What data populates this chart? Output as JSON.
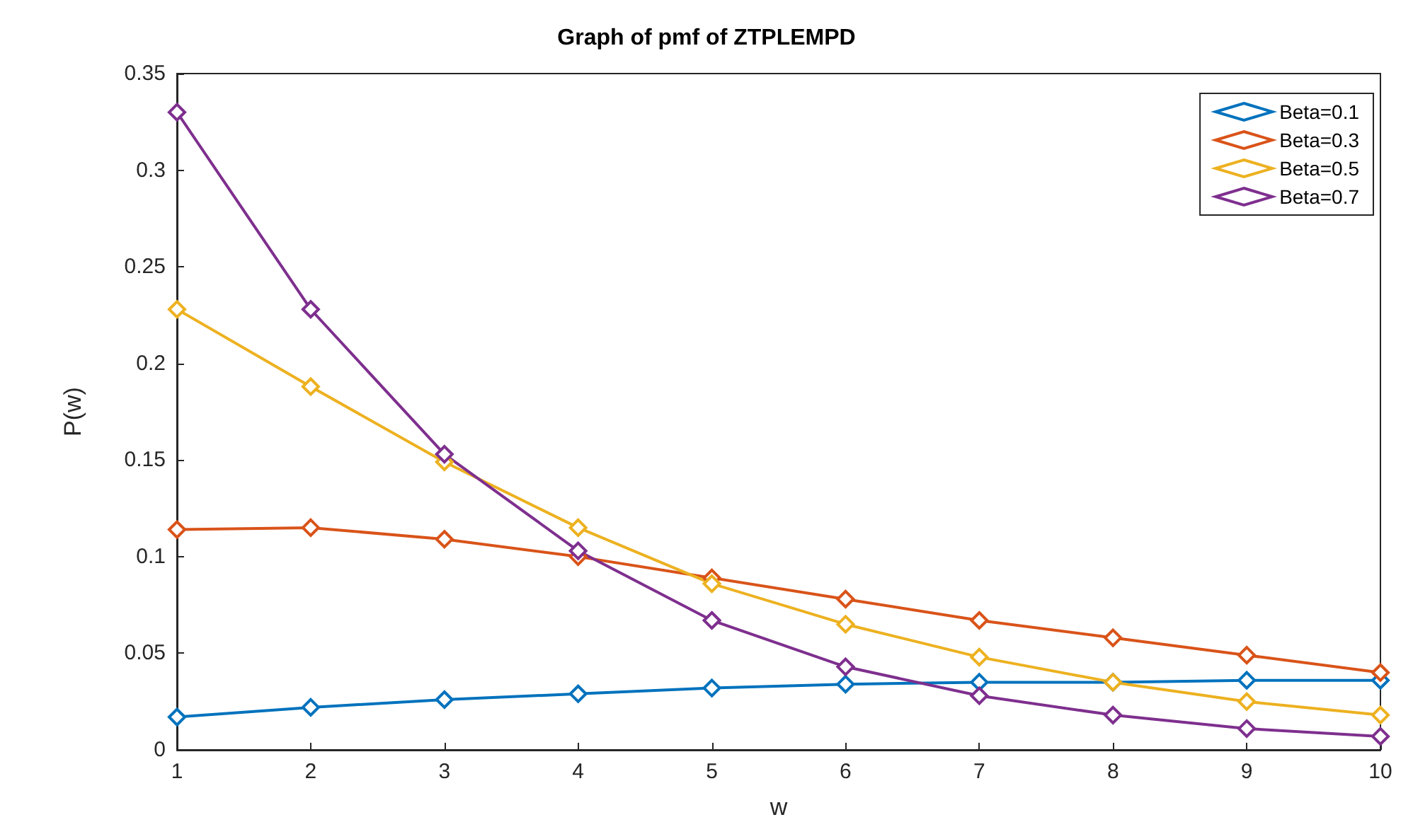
{
  "chart_data": {
    "type": "line",
    "title": "Graph of pmf of ZTPLEMPD",
    "xlabel": "w",
    "ylabel": "P(w)",
    "x": [
      1,
      2,
      3,
      4,
      5,
      6,
      7,
      8,
      9,
      10
    ],
    "xlim": [
      1,
      10
    ],
    "xticks": [
      1,
      2,
      3,
      4,
      5,
      6,
      7,
      8,
      9,
      10
    ],
    "ylim": [
      0,
      0.35
    ],
    "yticks": [
      0,
      0.05,
      0.1,
      0.15,
      0.2,
      0.25,
      0.3,
      0.35
    ],
    "grid": false,
    "legend": "top right",
    "marker": "diamond",
    "line_style": "solid",
    "series": [
      {
        "name": "Beta=0.1",
        "color": "#0072bd",
        "values": [
          0.017,
          0.022,
          0.026,
          0.029,
          0.032,
          0.034,
          0.035,
          0.035,
          0.036,
          0.036
        ]
      },
      {
        "name": "Beta=0.3",
        "color": "#d95319",
        "values": [
          0.114,
          0.115,
          0.109,
          0.1,
          0.089,
          0.078,
          0.067,
          0.058,
          0.049,
          0.04
        ]
      },
      {
        "name": "Beta=0.5",
        "color": "#edb120",
        "values": [
          0.228,
          0.188,
          0.149,
          0.115,
          0.086,
          0.065,
          0.048,
          0.035,
          0.025,
          0.018
        ]
      },
      {
        "name": "Beta=0.7",
        "color": "#7e2f8e",
        "values": [
          0.33,
          0.228,
          0.153,
          0.103,
          0.067,
          0.043,
          0.028,
          0.018,
          0.011,
          0.007
        ]
      }
    ]
  }
}
